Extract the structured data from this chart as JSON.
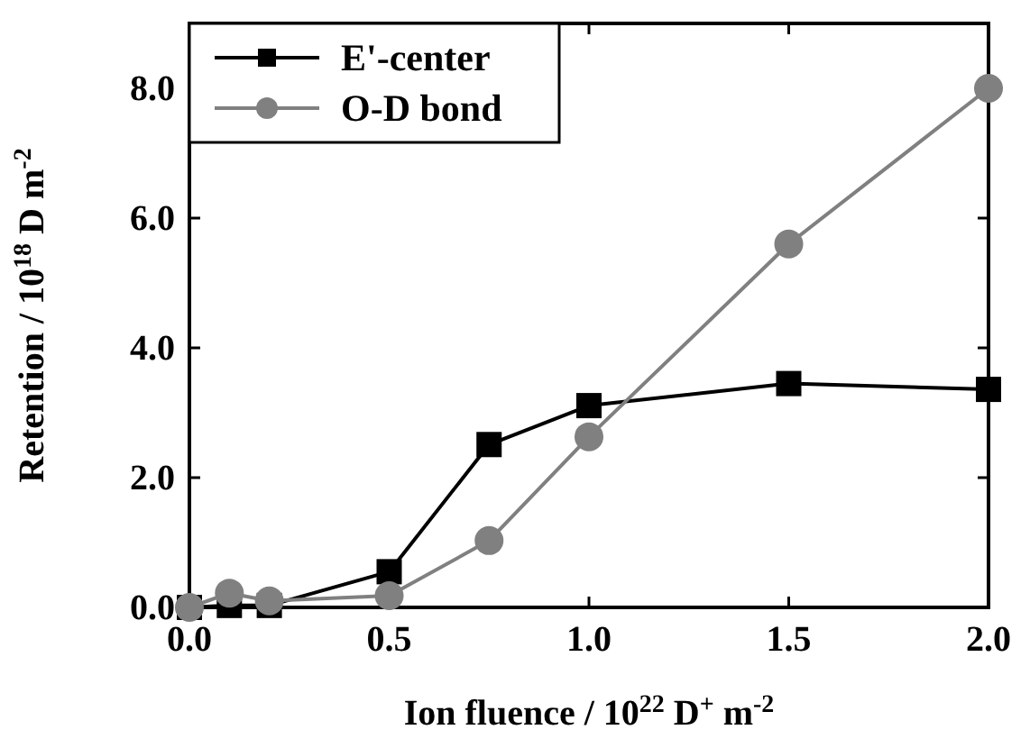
{
  "chart_data": {
    "type": "line",
    "xlabel": "Ion fluence / 10$^{22}$ D$^{+}$ m$^{-2}$",
    "ylabel": "Retention / 10$^{18}$ D m$^{-2}$",
    "x": [
      0,
      0.1,
      0.2,
      0.5,
      0.75,
      1.0,
      1.5,
      2.0
    ],
    "series": [
      {
        "name": "E'-center",
        "color": "#000000",
        "marker": "square",
        "values": [
          0,
          0.03,
          0.03,
          0.55,
          2.51,
          3.11,
          3.45,
          3.36
        ]
      },
      {
        "name": "O-D bond",
        "color": "#808080",
        "marker": "circle",
        "values": [
          0,
          0.22,
          0.1,
          0.18,
          1.03,
          2.63,
          5.6,
          8.0
        ]
      }
    ],
    "xlim": [
      0,
      2
    ],
    "xticks": [
      {
        "value": 0,
        "label": "0.0"
      },
      0.5,
      {
        "value": 1,
        "label": "1.0"
      },
      1.5,
      {
        "value": 2,
        "label": "2.0"
      }
    ],
    "ylim": [
      0,
      9
    ],
    "yticks": [
      {
        "value": 0,
        "label": "0.0"
      },
      {
        "value": 2,
        "label": "2.0"
      },
      {
        "value": 4,
        "label": "4.0"
      },
      {
        "value": 6,
        "label": "6.0"
      },
      {
        "value": 8,
        "label": "8.0"
      }
    ],
    "grid": false,
    "legend": "top left",
    "line_style": "solid"
  }
}
